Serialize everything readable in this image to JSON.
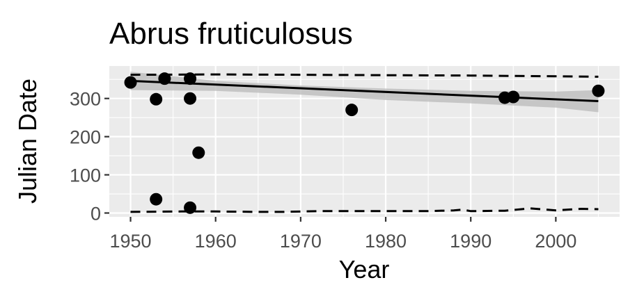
{
  "chart_data": {
    "type": "scatter",
    "title": "Abrus fruticulosus",
    "xlabel": "Year",
    "ylabel": "Julian Date",
    "xlim": [
      1947.5,
      2007.5
    ],
    "ylim": [
      -10,
      385
    ],
    "x_ticks": [
      1950,
      1960,
      1970,
      1980,
      1990,
      2000
    ],
    "y_ticks": [
      0,
      100,
      200,
      300
    ],
    "x_tick_labels": [
      "1950",
      "1960",
      "1970",
      "1980",
      "1990",
      "2000"
    ],
    "y_tick_labels": [
      "0",
      "100",
      "200",
      "300"
    ],
    "grid": true,
    "legend": "none",
    "colors": {
      "panel_background": "#ebebeb",
      "grid": "#ffffff",
      "points": "#000000",
      "trend_line": "#000000",
      "confidence_band": "#bdbdbd",
      "quantile_lines": "#000000"
    },
    "points": [
      {
        "x": 1950,
        "y": 342
      },
      {
        "x": 1953,
        "y": 298
      },
      {
        "x": 1953,
        "y": 36
      },
      {
        "x": 1954,
        "y": 352
      },
      {
        "x": 1957,
        "y": 352
      },
      {
        "x": 1957,
        "y": 300
      },
      {
        "x": 1957,
        "y": 14
      },
      {
        "x": 1958,
        "y": 158
      },
      {
        "x": 1976,
        "y": 270
      },
      {
        "x": 1994,
        "y": 302
      },
      {
        "x": 1995,
        "y": 304
      },
      {
        "x": 2005,
        "y": 320
      }
    ],
    "trend_line": {
      "x": [
        1950,
        2005
      ],
      "y": [
        346,
        293
      ]
    },
    "confidence_band": {
      "x": [
        1950,
        1960,
        1970,
        1980,
        1990,
        2000,
        2005
      ],
      "lower": [
        322,
        320,
        310,
        296,
        287,
        276,
        264
      ],
      "upper": [
        370,
        346,
        334,
        326,
        320,
        318,
        322
      ]
    },
    "upper_quantile_line": {
      "x": [
        1950,
        1960,
        1970,
        1980,
        1990,
        2000,
        2005
      ],
      "y": [
        362,
        363,
        362,
        361,
        360,
        358,
        357
      ]
    },
    "lower_quantile_line": {
      "x": [
        1950,
        1956,
        1960,
        1965,
        1968,
        1972,
        1980,
        1985,
        1988,
        1989,
        1990,
        1994,
        1997,
        2000,
        2003,
        2005
      ],
      "y": [
        3,
        4,
        4,
        3,
        3,
        5,
        5,
        5,
        7,
        9,
        5,
        6,
        12,
        7,
        11,
        10
      ]
    }
  }
}
